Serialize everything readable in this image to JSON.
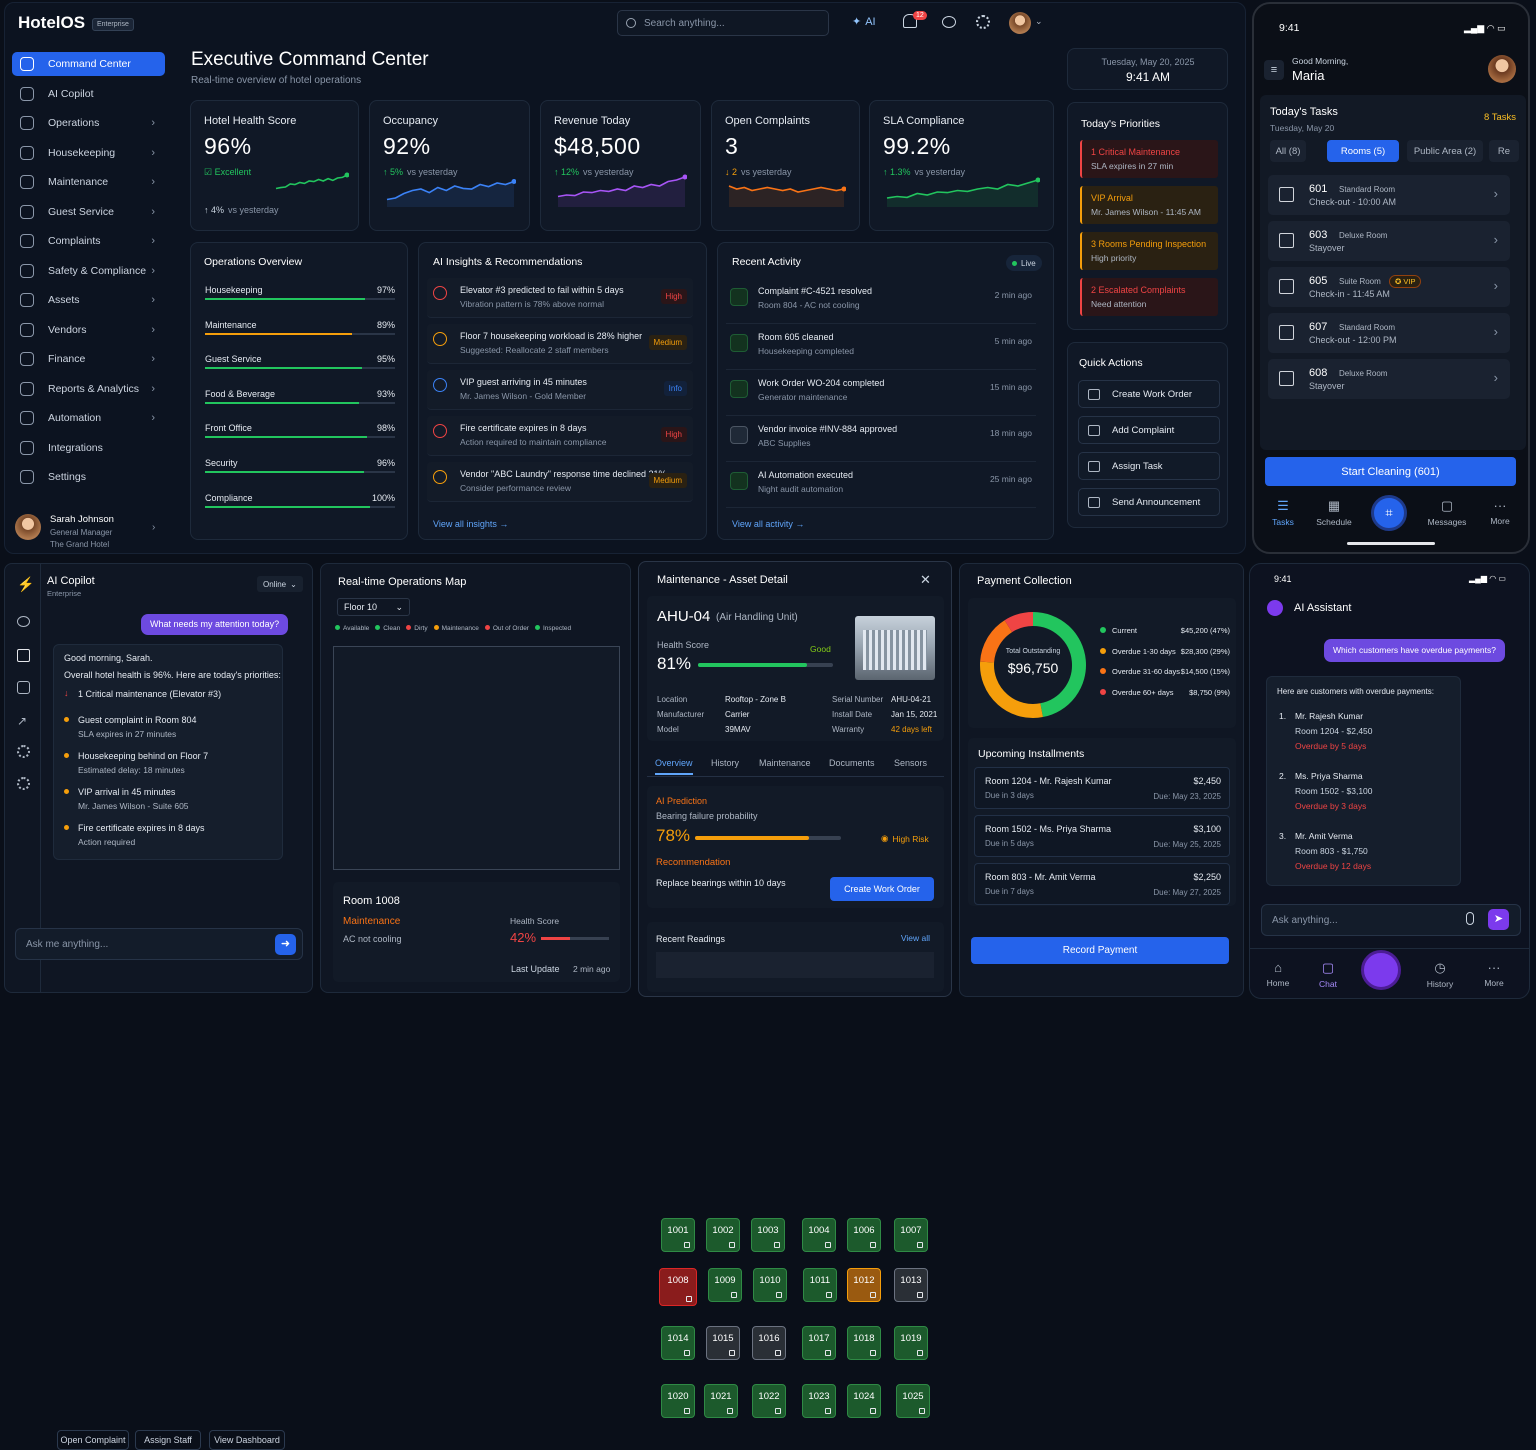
{
  "app": {
    "name": "HotelOS",
    "badge": "Enterprise"
  },
  "search": {
    "placeholder": "Search anything..."
  },
  "ai_btn": "AI",
  "notif_count": "12",
  "sidebar": {
    "items": [
      {
        "label": "Command Center",
        "active": true
      },
      {
        "label": "AI Copilot"
      },
      {
        "label": "Operations",
        "chev": true
      },
      {
        "label": "Housekeeping",
        "chev": true
      },
      {
        "label": "Maintenance",
        "chev": true
      },
      {
        "label": "Guest Service",
        "chev": true
      },
      {
        "label": "Complaints",
        "chev": true
      },
      {
        "label": "Safety & Compliance",
        "chev": true
      },
      {
        "label": "Assets",
        "chev": true
      },
      {
        "label": "Vendors",
        "chev": true
      },
      {
        "label": "Finance",
        "chev": true
      },
      {
        "label": "Reports & Analytics",
        "chev": true
      },
      {
        "label": "Automation",
        "chev": true
      },
      {
        "label": "Integrations"
      },
      {
        "label": "Settings"
      }
    ],
    "user": {
      "name": "Sarah Johnson",
      "role": "General Manager",
      "hotel": "The Grand Hotel"
    }
  },
  "header": {
    "title": "Executive Command Center",
    "subtitle": "Real-time overview of hotel operations",
    "date": "Tuesday, May 20, 2025",
    "time": "9:41 AM"
  },
  "kpis": [
    {
      "title": "Hotel Health Score",
      "value": "96%",
      "status": "Excellent",
      "change": "4%",
      "note": "vs yesterday",
      "color": "#22c55e"
    },
    {
      "title": "Occupancy",
      "value": "92%",
      "change": "5%",
      "note": "vs yesterday",
      "color": "#3b82f6"
    },
    {
      "title": "Revenue Today",
      "value": "$48,500",
      "change": "12%",
      "note": "vs yesterday",
      "color": "#a855f7"
    },
    {
      "title": "Open Complaints",
      "value": "3",
      "change": "2",
      "note": "vs yesterday",
      "color": "#f97316"
    },
    {
      "title": "SLA Compliance",
      "value": "99.2%",
      "change": "1.3%",
      "note": "vs yesterday",
      "color": "#22c55e"
    }
  ],
  "priorities": {
    "title": "Today's Priorities",
    "items": [
      {
        "t1": "1  Critical Maintenance",
        "t2": "SLA expires in 27 min",
        "color": "#ef4444"
      },
      {
        "t1": "VIP Arrival",
        "t2": "Mr. James Wilson - 11:45 AM",
        "color": "#f59e0b"
      },
      {
        "t1": "3  Rooms Pending Inspection",
        "t2": "High priority",
        "color": "#f59e0b"
      },
      {
        "t1": "2  Escalated Complaints",
        "t2": "Need attention",
        "color": "#ef4444"
      }
    ]
  },
  "ops": {
    "title": "Operations Overview",
    "rows": [
      {
        "label": "Housekeeping",
        "pct": "97%",
        "v": 97
      },
      {
        "label": "Maintenance",
        "pct": "89%",
        "v": 89
      },
      {
        "label": "Guest Service",
        "pct": "95%",
        "v": 95
      },
      {
        "label": "Food & Beverage",
        "pct": "93%",
        "v": 93
      },
      {
        "label": "Front Office",
        "pct": "98%",
        "v": 98
      },
      {
        "label": "Security",
        "pct": "96%",
        "v": 96
      },
      {
        "label": "Compliance",
        "pct": "100%",
        "v": 100
      }
    ]
  },
  "insights": {
    "title": "AI Insights & Recommendations",
    "link": "View all insights  →",
    "items": [
      {
        "t1": "Elevator #3 predicted to fail within 5 days",
        "t2": "Vibration pattern is 78% above normal",
        "badge": "High",
        "color": "#ef4444"
      },
      {
        "t1": "Floor 7 housekeeping workload is 28% higher",
        "t2": "Suggested: Reallocate 2 staff members",
        "badge": "Medium",
        "color": "#f59e0b"
      },
      {
        "t1": "VIP guest arriving in 45 minutes",
        "t2": "Mr. James Wilson - Gold Member",
        "badge": "Info",
        "color": "#3b82f6"
      },
      {
        "t1": "Fire certificate expires in 8 days",
        "t2": "Action required to maintain compliance",
        "badge": "High",
        "color": "#ef4444"
      },
      {
        "t1": "Vendor \"ABC Laundry\" response time declined 21%",
        "t2": "Consider performance review",
        "badge": "Medium",
        "color": "#f59e0b"
      }
    ]
  },
  "activity": {
    "title": "Recent Activity",
    "live": "Live",
    "link": "View all activity  →",
    "items": [
      {
        "t1": "Complaint #C-4521 resolved",
        "t2": "Room 804 - AC not cooling",
        "tm": "2 min ago"
      },
      {
        "t1": "Room 605 cleaned",
        "t2": "Housekeeping completed",
        "tm": "5 min ago"
      },
      {
        "t1": "Work Order WO-204 completed",
        "t2": "Generator maintenance",
        "tm": "15 min ago"
      },
      {
        "t1": "Vendor invoice #INV-884 approved",
        "t2": "ABC Supplies",
        "tm": "18 min ago"
      },
      {
        "t1": "AI Automation executed",
        "t2": "Night audit automation",
        "tm": "25 min ago"
      }
    ]
  },
  "quick": {
    "title": "Quick Actions",
    "items": [
      "Create Work Order",
      "Add Complaint",
      "Assign Task",
      "Send Announcement"
    ]
  },
  "phone1": {
    "time": "9:41",
    "greet": "Good Morning,",
    "name": "Maria",
    "tasks_title": "Today's Tasks",
    "tasks_count": "8 Tasks",
    "date": "Tuesday, May 20",
    "tabs": [
      "All (8)",
      "Rooms (5)",
      "Public Area (2)",
      "Re"
    ],
    "tasks": [
      {
        "num": "601",
        "type": "Standard Room",
        "info": "Check-out  -  10:00 AM"
      },
      {
        "num": "603",
        "type": "Deluxe Room",
        "info": "Stayover"
      },
      {
        "num": "605",
        "type": "Suite Room",
        "info": "Check-in  -  11:45 AM",
        "vip": "VIP"
      },
      {
        "num": "607",
        "type": "Standard Room",
        "info": "Check-out  -  12:00 PM"
      },
      {
        "num": "608",
        "type": "Deluxe Room",
        "info": "Stayover"
      }
    ],
    "cta": "Start Cleaning (601)",
    "nav": [
      "Tasks",
      "Schedule",
      "",
      "Messages",
      "More"
    ]
  },
  "copilot": {
    "title": "AI Copilot",
    "sub": "Enterprise",
    "status": "Online",
    "question": "What needs my attention today?",
    "greet": "Good morning, Sarah.",
    "line": "Overall hotel health is 96%. Here are today's priorities:",
    "items": [
      {
        "t": "1 Critical maintenance (Elevator #3)",
        "s": "",
        "c": "#ef4444"
      },
      {
        "t": "Guest complaint in Room 804",
        "s": "SLA expires in 27 minutes",
        "c": "#f59e0b"
      },
      {
        "t": "Housekeeping behind on Floor 7",
        "s": "Estimated delay: 18 minutes",
        "c": "#f59e0b"
      },
      {
        "t": "VIP arrival in 45 minutes",
        "s": "Mr. James Wilson - Suite 605",
        "c": "#f59e0b"
      },
      {
        "t": "Fire certificate expires in 8 days",
        "s": "Action required",
        "c": "#f59e0b"
      }
    ],
    "buttons": [
      "Open Complaint",
      "Assign Staff",
      "View Dashboard"
    ],
    "input": "Ask me anything..."
  },
  "map": {
    "title": "Real-time Operations Map",
    "floor": "Floor 10",
    "legend": [
      {
        "l": "Available",
        "c": "#22c55e"
      },
      {
        "l": "Clean",
        "c": "#22c55e"
      },
      {
        "l": "Dirty",
        "c": "#ef4444"
      },
      {
        "l": "Maintenance",
        "c": "#f59e0b"
      },
      {
        "l": "Out of Order",
        "c": "#ef4444"
      },
      {
        "l": "Inspected",
        "c": "#22c55e"
      }
    ],
    "rooms": [
      [
        "1001",
        "1002",
        "1003",
        "1004",
        "1006",
        "1007"
      ],
      [
        "1008",
        "1009",
        "1010",
        "1011",
        "1012",
        "1013"
      ],
      [
        "1014",
        "1015",
        "1016",
        "1017",
        "1018",
        "1019"
      ],
      [
        "1020",
        "1021",
        "1022",
        "1023",
        "1024",
        "1025"
      ]
    ],
    "detail": {
      "room": "Room 1008",
      "status": "Maintenance",
      "issue": "AC not cooling",
      "hs_label": "Health Score",
      "hs": "42%",
      "hs_val": 42,
      "update_label": "Last Update",
      "update": "2 min ago"
    }
  },
  "asset": {
    "title": "Maintenance - Asset Detail",
    "name": "AHU-04",
    "type": "(Air Handling Unit)",
    "hs_label": "Health Score",
    "hs_status": "Good",
    "hs": "81%",
    "hs_val": 81,
    "fields": [
      [
        "Location",
        "Rooftop - Zone B",
        "Serial Number",
        "AHU-04-21"
      ],
      [
        "Manufacturer",
        "Carrier",
        "Install Date",
        "Jan 15, 2021"
      ],
      [
        "Model",
        "39MAV",
        "Warranty",
        "42 days left"
      ]
    ],
    "tabs": [
      "Overview",
      "History",
      "Maintenance",
      "Documents",
      "Sensors"
    ],
    "pred_title": "AI Prediction",
    "pred_sub": "Bearing failure probability",
    "pred": "78%",
    "pred_val": 78,
    "risk": "High Risk",
    "rec_title": "Recommendation",
    "rec": "Replace bearings within 10 days",
    "cta": "Create Work Order",
    "readings": "Recent Readings",
    "view_all": "View all"
  },
  "payment": {
    "title": "Payment Collection",
    "total_label": "Total Outstanding",
    "total": "$96,750",
    "legend": [
      {
        "l": "Current",
        "v": "$45,200 (47%)",
        "c": "#22c55e",
        "p": 47
      },
      {
        "l": "Overdue 1-30 days",
        "v": "$28,300 (29%)",
        "c": "#f59e0b",
        "p": 29
      },
      {
        "l": "Overdue 31-60 days",
        "v": "$14,500 (15%)",
        "c": "#f97316",
        "p": 15
      },
      {
        "l": "Overdue 60+ days",
        "v": "$8,750 (9%)",
        "c": "#ef4444",
        "p": 9
      }
    ],
    "inst_title": "Upcoming Installments",
    "installments": [
      {
        "a": "Room 1204 - Mr. Rajesh Kumar",
        "b": "Due in 3 days",
        "c": "$2,450",
        "d": "Due: May 23, 2025"
      },
      {
        "a": "Room 1502 - Ms. Priya Sharma",
        "b": "Due in 5 days",
        "c": "$3,100",
        "d": "Due: May 25, 2025"
      },
      {
        "a": "Room 803 - Mr. Amit Verma",
        "b": "Due in 7 days",
        "c": "$2,250",
        "d": "Due: May 27, 2025"
      }
    ],
    "cta": "Record Payment"
  },
  "phone2": {
    "time": "9:41",
    "title": "AI Assistant",
    "question": "Which customers have overdue payments?",
    "intro": "Here are customers with overdue payments:",
    "items": [
      {
        "n": "1.",
        "name": "Mr. Rajesh Kumar",
        "room": "Room 1204 - $2,450",
        "od": "Overdue by 5 days"
      },
      {
        "n": "2.",
        "name": "Ms. Priya Sharma",
        "room": "Room 1502 - $3,100",
        "od": "Overdue by 3 days"
      },
      {
        "n": "3.",
        "name": "Mr. Amit Verma",
        "room": "Room 803 - $1,750",
        "od": "Overdue by 12 days"
      }
    ],
    "input": "Ask anything...",
    "nav": [
      "Home",
      "Chat",
      "",
      "History",
      "More"
    ]
  }
}
